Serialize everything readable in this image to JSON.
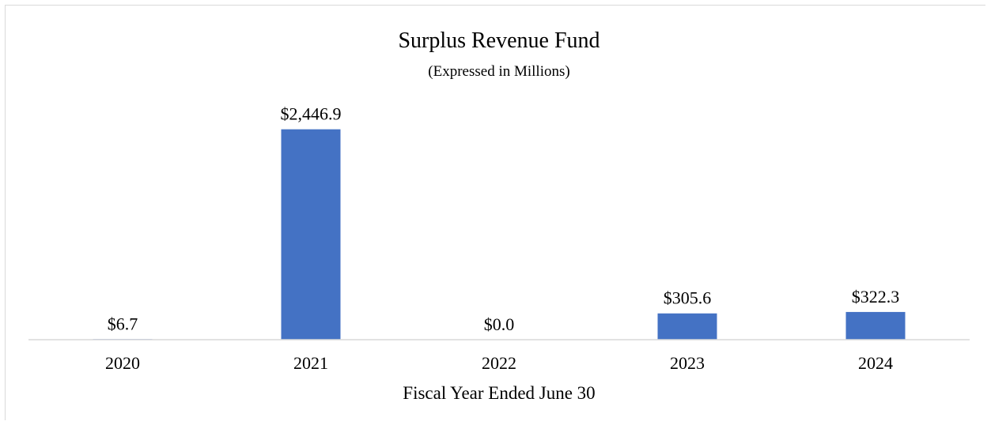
{
  "chart_data": {
    "type": "bar",
    "title": "Surplus Revenue Fund",
    "subtitle": "(Expressed in Millions)",
    "xlabel": "Fiscal Year Ended June 30",
    "ylabel": "",
    "categories": [
      "2020",
      "2021",
      "2022",
      "2023",
      "2024"
    ],
    "values": [
      6.7,
      2446.9,
      0.0,
      305.6,
      322.3
    ],
    "data_labels": [
      "$6.7",
      "$2,446.9",
      "$0.0",
      "$305.6",
      "$322.3"
    ],
    "ylim": [
      0,
      2600
    ],
    "grid": false,
    "legend": "none",
    "colors": {
      "bar": "#4472c4",
      "axis": "#d9d9d9"
    }
  }
}
